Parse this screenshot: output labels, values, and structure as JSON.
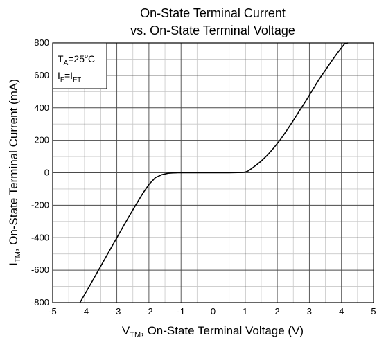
{
  "chart_data": {
    "type": "line",
    "title_lines": [
      "On-State Terminal Current",
      "vs. On-State Terminal Voltage"
    ],
    "xlabel": {
      "main": "V",
      "sub": "TM",
      "rest": ", On-State Terminal Voltage (V)"
    },
    "ylabel": {
      "main": "I",
      "sub": "TM",
      "rest": ", On-State Terminal Current (mA)"
    },
    "xlim": [
      -5,
      5
    ],
    "ylim": [
      -800,
      800
    ],
    "x_ticks": [
      -5,
      -4,
      -3,
      -2,
      -1,
      0,
      1,
      2,
      3,
      4,
      5
    ],
    "x_tick_labels": [
      "-5",
      "-4",
      "-3",
      "-2",
      "-1",
      "0",
      "1",
      "2",
      "3",
      "4",
      "5"
    ],
    "y_ticks": [
      -800,
      -600,
      -400,
      -200,
      0,
      200,
      400,
      600,
      800
    ],
    "y_tick_labels": [
      "-800",
      "-600",
      "-400",
      "-200",
      "0",
      "200",
      "400",
      "600",
      "800"
    ],
    "grid": true,
    "annotation": {
      "line1": {
        "main": "T",
        "sub": "A",
        "rest": "=25",
        "sup": "o",
        "tail": "C"
      },
      "line2": {
        "main": "I",
        "sub1": "F",
        "mid": "=I",
        "sub2": "FT"
      },
      "placement": "top-left"
    },
    "series": [
      {
        "x": [
          -4.15,
          -3.8,
          -3.5,
          -3.2,
          -3.0,
          -2.8,
          -2.5,
          -2.2,
          -2.0,
          -1.8,
          -1.6,
          -1.4,
          -1.25,
          -1.1,
          -1.0,
          -0.5,
          0,
          0.5,
          0.9,
          1.0,
          1.1,
          1.2,
          1.35,
          1.5,
          1.7,
          1.9,
          2.1,
          2.3,
          2.5,
          2.7,
          2.9,
          3.1,
          3.3,
          3.5,
          3.7,
          3.9,
          4.1,
          4.2
        ],
        "y": [
          -800,
          -680,
          -575,
          -470,
          -400,
          -330,
          -228,
          -130,
          -72,
          -30,
          -12,
          -3,
          -1,
          0,
          0,
          0,
          0,
          0,
          2,
          4,
          12,
          26,
          48,
          72,
          110,
          155,
          205,
          262,
          322,
          385,
          445,
          510,
          575,
          632,
          690,
          745,
          795,
          800
        ]
      }
    ]
  }
}
